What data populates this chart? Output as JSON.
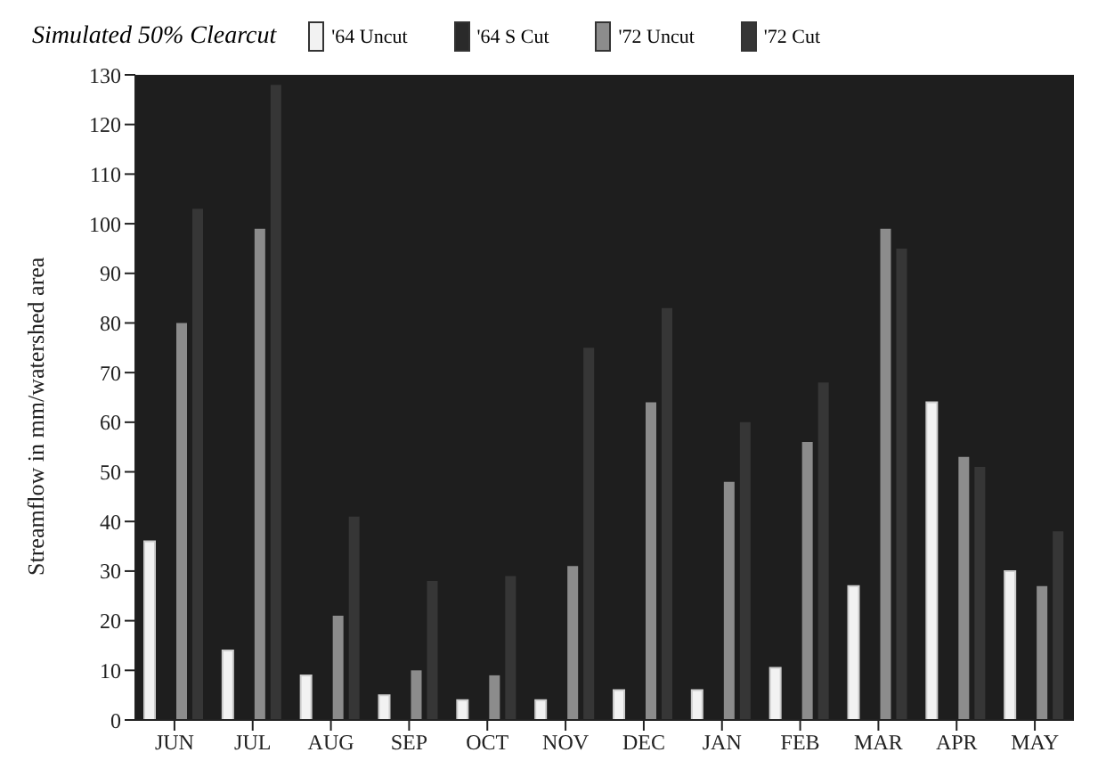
{
  "chart_data": {
    "type": "bar",
    "title": "Simulated 50% Clearcut",
    "ylabel": "Streamflow in mm/watershed area",
    "categories": [
      "JUN",
      "JUL",
      "AUG",
      "SEP",
      "OCT",
      "NOV",
      "DEC",
      "JAN",
      "FEB",
      "MAR",
      "APR",
      "MAY"
    ],
    "series": [
      {
        "name": "'64 Uncut",
        "color": "#f2f2f2",
        "values": [
          36,
          14,
          9,
          5,
          4,
          4,
          6,
          6,
          10.5,
          27,
          64,
          30
        ]
      },
      {
        "name": "'64 S Cut",
        "color": "#2a2a2a",
        "values": [
          null,
          null,
          null,
          null,
          null,
          null,
          null,
          null,
          null,
          null,
          null,
          null
        ]
      },
      {
        "name": "'72 Uncut",
        "color": "#8c8c8c",
        "values": [
          80,
          99,
          21,
          10,
          9,
          31,
          64,
          48,
          56,
          99,
          53,
          27
        ]
      },
      {
        "name": "'72 Cut",
        "color": "#363636",
        "values": [
          103,
          128,
          41,
          28,
          29,
          75,
          83,
          60,
          68,
          95,
          51,
          38
        ]
      }
    ],
    "ylim": [
      0,
      130
    ],
    "yticks": [
      0,
      10,
      20,
      30,
      40,
      50,
      60,
      70,
      80,
      90,
      100,
      110,
      120,
      130
    ],
    "grid": false,
    "legend": "top"
  }
}
